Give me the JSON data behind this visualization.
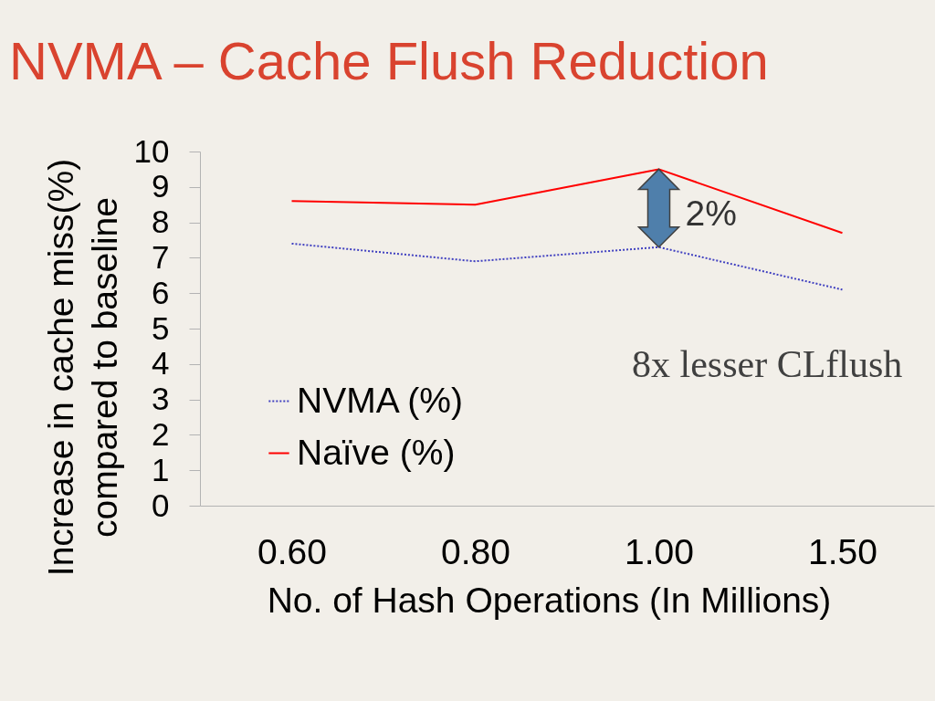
{
  "chart_data": {
    "type": "line",
    "title": "NVMA – Cache Flush Reduction",
    "xlabel": "No. of Hash Operations (In Millions)",
    "ylabel": "Increase in cache miss(%)\ncompared to baseline",
    "categories": [
      "0.60",
      "0.80",
      "1.00",
      "1.50"
    ],
    "series": [
      {
        "name": "NVMA (%)",
        "color": "#4040c0",
        "line_style": "dotted",
        "values": [
          7.4,
          6.9,
          7.3,
          6.1
        ]
      },
      {
        "name": "Naïve (%)",
        "color": "#ff0000",
        "line_style": "solid",
        "values": [
          8.6,
          8.5,
          9.5,
          7.7
        ]
      }
    ],
    "ylim": [
      0,
      10
    ],
    "yticks": [
      0,
      1,
      2,
      3,
      4,
      5,
      6,
      7,
      8,
      9,
      10
    ],
    "legend": "bottom left",
    "annotations": [
      {
        "text": "2%",
        "x": "1.00",
        "y": 9.5
      },
      "8x lesser CLflush"
    ]
  }
}
